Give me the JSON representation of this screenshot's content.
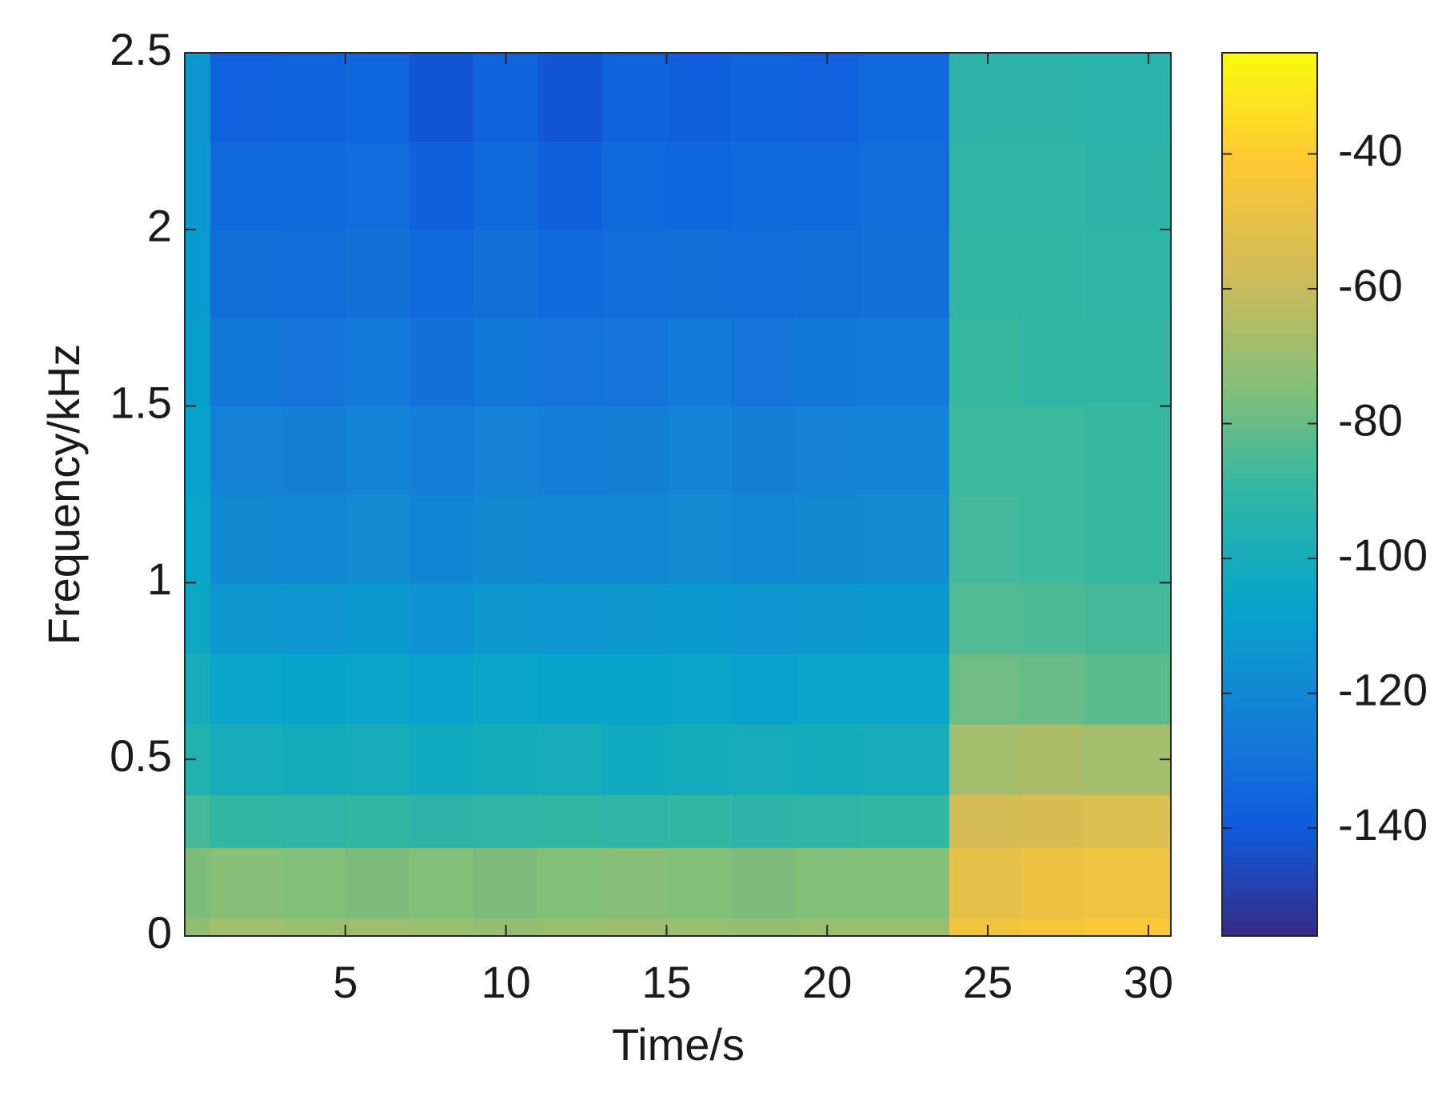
{
  "chart_data": {
    "type": "heatmap",
    "xlabel": "Time/s",
    "ylabel": "Frequency/kHz",
    "xbins": [
      0,
      0.8,
      3,
      5,
      7,
      9,
      11,
      13,
      15,
      17,
      19,
      21,
      23.8,
      26,
      28,
      30.7
    ],
    "ybins": [
      0,
      0.05,
      0.25,
      0.4,
      0.6,
      0.8,
      1.0,
      1.25,
      1.5,
      1.75,
      2.0,
      2.25,
      2.5
    ],
    "z": [
      [
        -72,
        -68,
        -70,
        -69,
        -70,
        -71,
        -70,
        -69,
        -70,
        -71,
        -70,
        -70,
        -46,
        -44,
        -43
      ],
      [
        -76,
        -74,
        -75,
        -76,
        -75,
        -76,
        -75,
        -74,
        -75,
        -76,
        -75,
        -75,
        -50,
        -48,
        -47
      ],
      [
        -86,
        -90,
        -91,
        -90,
        -92,
        -91,
        -90,
        -91,
        -90,
        -92,
        -91,
        -90,
        -56,
        -55,
        -54
      ],
      [
        -96,
        -100,
        -101,
        -100,
        -102,
        -101,
        -100,
        -102,
        -101,
        -100,
        -101,
        -100,
        -68,
        -66,
        -68
      ],
      [
        -100,
        -106,
        -107,
        -106,
        -108,
        -106,
        -107,
        -107,
        -106,
        -108,
        -106,
        -106,
        -79,
        -80,
        -82
      ],
      [
        -104,
        -113,
        -114,
        -112,
        -115,
        -113,
        -114,
        -113,
        -112,
        -114,
        -113,
        -112,
        -84,
        -85,
        -86
      ],
      [
        -106,
        -119,
        -120,
        -118,
        -121,
        -119,
        -120,
        -120,
        -118,
        -120,
        -119,
        -118,
        -87,
        -88,
        -89
      ],
      [
        -108,
        -123,
        -124,
        -122,
        -125,
        -123,
        -125,
        -124,
        -122,
        -124,
        -123,
        -122,
        -88,
        -88,
        -89
      ],
      [
        -110,
        -127,
        -128,
        -126,
        -130,
        -127,
        -129,
        -128,
        -126,
        -128,
        -127,
        -126,
        -89,
        -90,
        -90
      ],
      [
        -111,
        -131,
        -132,
        -130,
        -134,
        -131,
        -134,
        -132,
        -131,
        -132,
        -131,
        -130,
        -90,
        -90,
        -91
      ],
      [
        -112,
        -134,
        -134,
        -133,
        -138,
        -134,
        -138,
        -134,
        -135,
        -134,
        -134,
        -132,
        -91,
        -91,
        -92
      ],
      [
        -113,
        -137,
        -136,
        -135,
        -142,
        -136,
        -142,
        -136,
        -138,
        -136,
        -137,
        -134,
        -92,
        -92,
        -93
      ]
    ],
    "xlim": [
      0,
      30.7
    ],
    "xticks": [
      5,
      10,
      15,
      20,
      25,
      30
    ],
    "ylim": [
      0,
      2.5
    ],
    "yticks": [
      0,
      0.5,
      1,
      1.5,
      2,
      2.5
    ],
    "clim": [
      -156,
      -25
    ],
    "cticks": [
      -140,
      -120,
      -100,
      -80,
      -60,
      -40
    ],
    "colormap": "parula"
  }
}
